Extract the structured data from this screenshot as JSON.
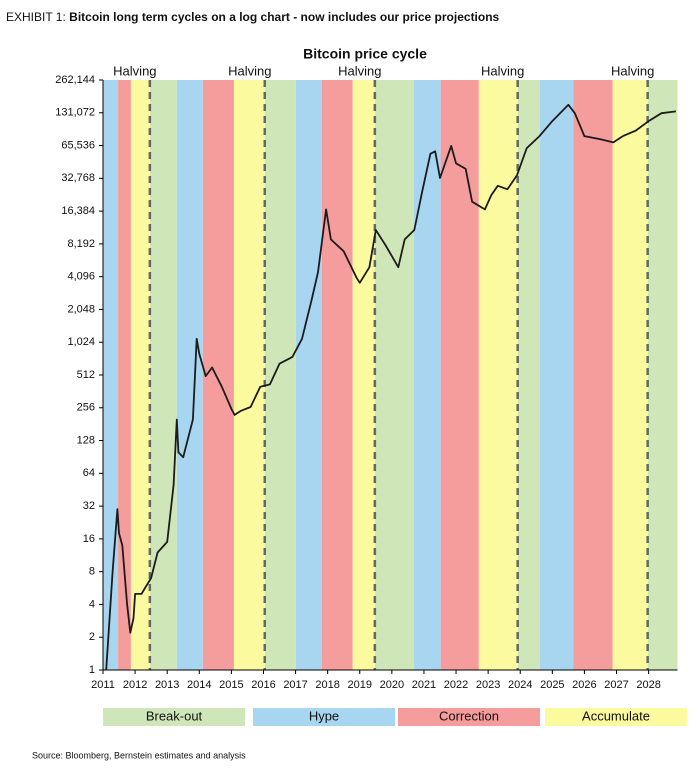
{
  "header": {
    "label": "EXHIBIT 1:",
    "title": "Bitcoin long term cycles on a log chart - now includes our price projections"
  },
  "source": "Source: Bloomberg, Bernstein estimates and analysis",
  "chart_data": {
    "type": "line",
    "title": "Bitcoin price cycle",
    "log_scale": true,
    "line_color": "#1c1c1c",
    "xlim": [
      2011,
      2028.9
    ],
    "xticks": [
      2011,
      2012,
      2013,
      2014,
      2015,
      2016,
      2017,
      2018,
      2019,
      2020,
      2021,
      2022,
      2023,
      2024,
      2025,
      2026,
      2027,
      2028
    ],
    "ylim": [
      1,
      262144
    ],
    "yticks": [
      1,
      2,
      4,
      8,
      16,
      32,
      64,
      128,
      256,
      512,
      {
        "value": 1024,
        "label": "1,024"
      },
      {
        "value": 2048,
        "label": "2,048"
      },
      {
        "value": 4096,
        "label": "4,096"
      },
      {
        "value": 8192,
        "label": "8,192"
      },
      {
        "value": 16384,
        "label": "16,384"
      },
      {
        "value": 32768,
        "label": "32,768"
      },
      {
        "value": 65536,
        "label": "65,536"
      },
      {
        "value": 131072,
        "label": "131,072"
      },
      {
        "value": 262144,
        "label": "262,144"
      }
    ],
    "phases": [
      {
        "name": "Break-out",
        "color": "#cfe7b8",
        "spans": [
          [
            2012.46,
            2013.3
          ],
          [
            2016.04,
            2017.01
          ],
          [
            2019.47,
            2020.68
          ],
          [
            2023.92,
            2024.61
          ],
          [
            2027.97,
            2028.9
          ]
        ]
      },
      {
        "name": "Hype",
        "color": "#a8d5f0",
        "spans": [
          [
            2011,
            2011.47
          ],
          [
            2013.3,
            2014.11
          ],
          [
            2017.01,
            2017.82
          ],
          [
            2020.68,
            2021.52
          ],
          [
            2024.61,
            2025.66
          ]
        ]
      },
      {
        "name": "Correction",
        "color": "#f59c9c",
        "spans": [
          [
            2011.47,
            2011.87
          ],
          [
            2014.11,
            2015.08
          ],
          [
            2017.82,
            2018.78
          ],
          [
            2021.52,
            2022.71
          ],
          [
            2025.66,
            2026.88
          ]
        ]
      },
      {
        "name": "Accumulate",
        "color": "#fcfa9f",
        "spans": [
          [
            2011.87,
            2012.46
          ],
          [
            2015.08,
            2016.04
          ],
          [
            2018.78,
            2019.47
          ],
          [
            2022.71,
            2023.92
          ],
          [
            2026.88,
            2027.97
          ]
        ]
      }
    ],
    "annotations": [
      {
        "text": "Halving",
        "x": 2012.46
      },
      {
        "text": "Halving",
        "x": 2016.04
      },
      {
        "text": "Halving",
        "x": 2019.47
      },
      {
        "text": "Halving",
        "x": 2023.92
      },
      {
        "text": "Halving",
        "x": 2027.97
      }
    ],
    "x": [
      2011.1,
      2011.3,
      2011.45,
      2011.5,
      2011.6,
      2011.75,
      2011.85,
      2011.95,
      2012.0,
      2012.2,
      2012.5,
      2012.7,
      2013.0,
      2013.2,
      2013.3,
      2013.35,
      2013.5,
      2013.8,
      2013.92,
      2014.0,
      2014.2,
      2014.4,
      2014.7,
      2015.0,
      2015.1,
      2015.3,
      2015.6,
      2015.9,
      2016.2,
      2016.5,
      2016.9,
      2017.2,
      2017.5,
      2017.7,
      2017.95,
      2018.1,
      2018.5,
      2018.9,
      2019.0,
      2019.3,
      2019.5,
      2019.8,
      2020.2,
      2020.4,
      2020.7,
      2020.95,
      2021.2,
      2021.35,
      2021.5,
      2021.85,
      2022.0,
      2022.3,
      2022.5,
      2022.9,
      2023.1,
      2023.3,
      2023.6,
      2023.9,
      2024.2,
      2024.6,
      2025.0,
      2025.5,
      2025.7,
      2026.0,
      2026.5,
      2026.9,
      2027.2,
      2027.6,
      2028.0,
      2028.4,
      2028.85
    ],
    "values": [
      1,
      8,
      30,
      18,
      14,
      4,
      2.2,
      3,
      5,
      5,
      7,
      12,
      15,
      50,
      200,
      100,
      90,
      200,
      1100,
      800,
      500,
      600,
      400,
      250,
      220,
      240,
      260,
      400,
      420,
      650,
      750,
      1100,
      2500,
      4500,
      17000,
      9000,
      7000,
      4000,
      3600,
      5000,
      11000,
      8000,
      5000,
      9000,
      11000,
      25000,
      55000,
      58000,
      33000,
      65000,
      45000,
      40000,
      20000,
      17000,
      23000,
      28000,
      26000,
      35000,
      62000,
      80000,
      110000,
      155000,
      130000,
      80000,
      75000,
      70000,
      80000,
      90000,
      110000,
      130000,
      135000
    ]
  }
}
